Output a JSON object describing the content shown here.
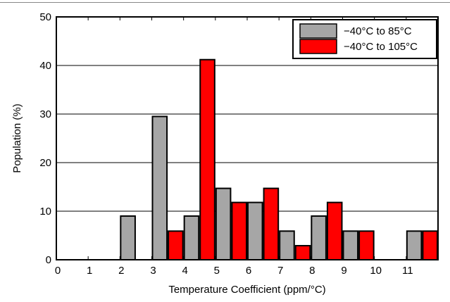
{
  "chart_data": {
    "type": "bar",
    "title": "",
    "xlabel": "Temperature Coefficient (ppm/°C)",
    "ylabel": "Population (%)",
    "ylim": [
      0,
      50
    ],
    "yticks": [
      "0",
      "10",
      "20",
      "30",
      "40",
      "50"
    ],
    "categories": [
      "0",
      "1",
      "2",
      "3",
      "4",
      "5",
      "6",
      "7",
      "8",
      "9",
      "10",
      "11"
    ],
    "grid": true,
    "legend_position": "top-right",
    "series": [
      {
        "name": "−40°C to 85°C",
        "color": "#a6a6a6",
        "values": [
          0,
          0,
          9,
          29.5,
          9,
          14.7,
          11.8,
          5.9,
          9,
          5.9,
          0,
          5.9
        ]
      },
      {
        "name": "−40°C to 105°C",
        "color": "#ff0000",
        "values": [
          0,
          0,
          0,
          5.9,
          41.2,
          11.8,
          14.7,
          2.9,
          11.8,
          5.9,
          0,
          5.9
        ]
      }
    ]
  }
}
